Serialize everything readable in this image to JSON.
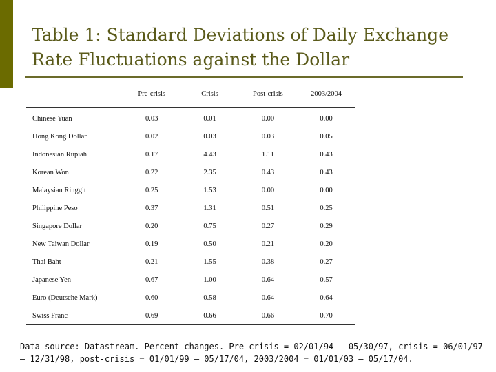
{
  "slide": {
    "title_line1": "Table 1: Standard Deviations of Daily Exchange",
    "title_line2": "Rate Fluctuations against the Dollar",
    "accent_color": "#6b6b00",
    "title_color": "#5a5a1a"
  },
  "table": {
    "columns": [
      "",
      "Pre-crisis",
      "Crisis",
      "Post-crisis",
      "2003/2004"
    ],
    "rows": [
      {
        "country": "Chinese Yuan",
        "values": [
          "0.03",
          "0.01",
          "0.00",
          "0.00"
        ]
      },
      {
        "country": "Hong Kong Dollar",
        "values": [
          "0.02",
          "0.03",
          "0.03",
          "0.05"
        ]
      },
      {
        "country": "Indonesian Rupiah",
        "values": [
          "0.17",
          "4.43",
          "1.11",
          "0.43"
        ]
      },
      {
        "country": "Korean Won",
        "values": [
          "0.22",
          "2.35",
          "0.43",
          "0.43"
        ]
      },
      {
        "country": "Malaysian Ringgit",
        "values": [
          "0.25",
          "1.53",
          "0.00",
          "0.00"
        ]
      },
      {
        "country": "Philippine Peso",
        "values": [
          "0.37",
          "1.31",
          "0.51",
          "0.25"
        ]
      },
      {
        "country": "Singapore Dollar",
        "values": [
          "0.20",
          "0.75",
          "0.27",
          "0.29"
        ]
      },
      {
        "country": "New Taiwan Dollar",
        "values": [
          "0.19",
          "0.50",
          "0.21",
          "0.20"
        ]
      },
      {
        "country": "Thai Baht",
        "values": [
          "0.21",
          "1.55",
          "0.38",
          "0.27"
        ]
      },
      {
        "country": "Japanese Yen",
        "values": [
          "0.67",
          "1.00",
          "0.64",
          "0.57"
        ]
      },
      {
        "country": "Euro (Deutsche Mark)",
        "values": [
          "0.60",
          "0.58",
          "0.64",
          "0.64"
        ]
      },
      {
        "country": "Swiss Franc",
        "values": [
          "0.69",
          "0.66",
          "0.66",
          "0.70"
        ]
      }
    ]
  },
  "footnote": {
    "line1": "Data source: Datastream. Percent changes. Pre-crisis = 02/01/94 – 05/30/97, crisis = 06/01/97",
    "line2": "– 12/31/98, post-crisis = 01/01/99 – 05/17/04, 2003/2004 = 01/01/03 – 05/17/04."
  }
}
